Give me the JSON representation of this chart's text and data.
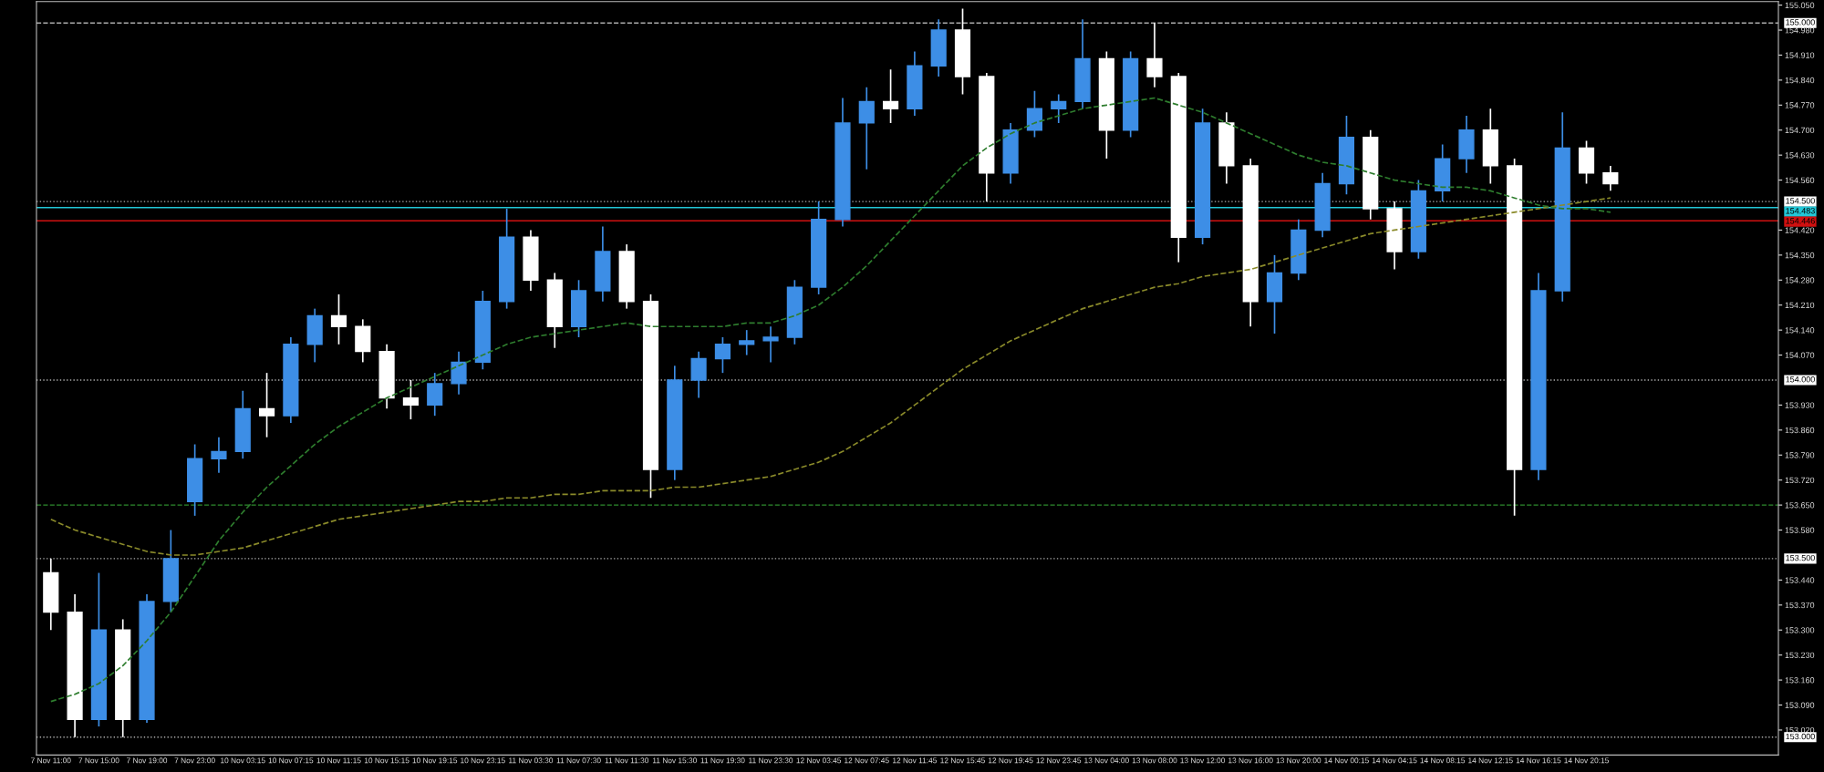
{
  "chart_data": {
    "type": "candlestick",
    "categories": [
      "7 Nov 11:00",
      null,
      "7 Nov 15:00",
      null,
      "7 Nov 19:00",
      null,
      "7 Nov 23:00",
      null,
      "10 Nov 03:15",
      null,
      "10 Nov 07:15",
      null,
      "10 Nov 11:15",
      null,
      "10 Nov 15:15",
      null,
      "10 Nov 19:15",
      null,
      "10 Nov 23:15",
      null,
      "11 Nov 03:30",
      null,
      "11 Nov 07:30",
      null,
      "11 Nov 11:30",
      null,
      "11 Nov 15:30",
      null,
      "11 Nov 19:30",
      null,
      "11 Nov 23:30",
      null,
      "12 Nov 03:45",
      null,
      "12 Nov 07:45",
      null,
      "12 Nov 11:45",
      null,
      "12 Nov 15:45",
      null,
      "12 Nov 19:45",
      null,
      "12 Nov 23:45",
      null,
      "13 Nov 04:00",
      null,
      "13 Nov 08:00",
      null,
      "13 Nov 12:00",
      null,
      "13 Nov 16:00",
      null,
      "13 Nov 20:00",
      null,
      "14 Nov 00:15",
      null,
      "14 Nov 04:15",
      null,
      "14 Nov 08:15",
      null,
      "14 Nov 12:15",
      null,
      "14 Nov 16:15",
      null,
      "14 Nov 20:15",
      null
    ],
    "ohlc": [
      [
        153.46,
        153.5,
        153.3,
        153.35
      ],
      [
        153.35,
        153.4,
        153.0,
        153.05
      ],
      [
        153.05,
        153.46,
        153.03,
        153.3
      ],
      [
        153.3,
        153.33,
        153.0,
        153.05
      ],
      [
        153.05,
        153.4,
        153.04,
        153.38
      ],
      [
        153.38,
        153.58,
        153.35,
        153.5
      ],
      [
        153.66,
        153.82,
        153.62,
        153.78
      ],
      [
        153.78,
        153.84,
        153.74,
        153.8
      ],
      [
        153.8,
        153.97,
        153.78,
        153.92
      ],
      [
        153.92,
        154.02,
        153.84,
        153.9
      ],
      [
        153.9,
        154.12,
        153.88,
        154.1
      ],
      [
        154.1,
        154.2,
        154.05,
        154.18
      ],
      [
        154.18,
        154.24,
        154.1,
        154.15
      ],
      [
        154.15,
        154.17,
        154.05,
        154.08
      ],
      [
        154.08,
        154.1,
        153.92,
        153.95
      ],
      [
        153.95,
        154.0,
        153.89,
        153.93
      ],
      [
        153.93,
        154.02,
        153.9,
        153.99
      ],
      [
        153.99,
        154.08,
        153.96,
        154.05
      ],
      [
        154.05,
        154.25,
        154.03,
        154.22
      ],
      [
        154.22,
        154.48,
        154.2,
        154.4
      ],
      [
        154.4,
        154.42,
        154.25,
        154.28
      ],
      [
        154.28,
        154.3,
        154.09,
        154.15
      ],
      [
        154.15,
        154.28,
        154.12,
        154.25
      ],
      [
        154.25,
        154.43,
        154.22,
        154.36
      ],
      [
        154.36,
        154.38,
        154.2,
        154.22
      ],
      [
        154.22,
        154.24,
        153.67,
        153.75
      ],
      [
        153.75,
        154.04,
        153.72,
        154.0
      ],
      [
        154.0,
        154.08,
        153.95,
        154.06
      ],
      [
        154.06,
        154.12,
        154.02,
        154.1
      ],
      [
        154.1,
        154.14,
        154.07,
        154.11
      ],
      [
        154.11,
        154.15,
        154.05,
        154.12
      ],
      [
        154.12,
        154.28,
        154.1,
        154.26
      ],
      [
        154.26,
        154.5,
        154.24,
        154.45
      ],
      [
        154.45,
        154.79,
        154.43,
        154.72
      ],
      [
        154.72,
        154.82,
        154.59,
        154.78
      ],
      [
        154.78,
        154.87,
        154.72,
        154.76
      ],
      [
        154.76,
        154.92,
        154.74,
        154.88
      ],
      [
        154.88,
        155.01,
        154.85,
        154.98
      ],
      [
        154.98,
        155.04,
        154.8,
        154.85
      ],
      [
        154.85,
        154.86,
        154.5,
        154.58
      ],
      [
        154.58,
        154.72,
        154.55,
        154.7
      ],
      [
        154.7,
        154.81,
        154.68,
        154.76
      ],
      [
        154.76,
        154.8,
        154.72,
        154.78
      ],
      [
        154.78,
        155.01,
        154.76,
        154.9
      ],
      [
        154.9,
        154.92,
        154.62,
        154.7
      ],
      [
        154.7,
        154.92,
        154.68,
        154.9
      ],
      [
        154.9,
        155.0,
        154.82,
        154.85
      ],
      [
        154.85,
        154.86,
        154.33,
        154.4
      ],
      [
        154.4,
        154.76,
        154.38,
        154.72
      ],
      [
        154.72,
        154.75,
        154.55,
        154.6
      ],
      [
        154.6,
        154.62,
        154.15,
        154.22
      ],
      [
        154.22,
        154.35,
        154.13,
        154.3
      ],
      [
        154.3,
        154.45,
        154.28,
        154.42
      ],
      [
        154.42,
        154.58,
        154.4,
        154.55
      ],
      [
        154.55,
        154.74,
        154.52,
        154.68
      ],
      [
        154.68,
        154.7,
        154.45,
        154.48
      ],
      [
        154.48,
        154.5,
        154.31,
        154.36
      ],
      [
        154.36,
        154.56,
        154.34,
        154.53
      ],
      [
        154.53,
        154.66,
        154.5,
        154.62
      ],
      [
        154.62,
        154.74,
        154.58,
        154.7
      ],
      [
        154.7,
        154.76,
        154.55,
        154.6
      ],
      [
        154.6,
        154.62,
        153.62,
        153.75
      ],
      [
        153.75,
        154.3,
        153.72,
        154.25
      ],
      [
        154.25,
        154.75,
        154.22,
        154.65
      ],
      [
        154.65,
        154.67,
        154.55,
        154.58
      ],
      [
        154.58,
        154.6,
        154.53,
        154.55
      ]
    ],
    "colors": [
      "#ffffff",
      "#ffffff",
      "#3d8ee6",
      "#ffffff",
      "#3d8ee6",
      "#3d8ee6",
      "#3d8ee6",
      "#3d8ee6",
      "#3d8ee6",
      "#ffffff",
      "#3d8ee6",
      "#3d8ee6",
      "#ffffff",
      "#ffffff",
      "#ffffff",
      "#ffffff",
      "#3d8ee6",
      "#3d8ee6",
      "#3d8ee6",
      "#3d8ee6",
      "#ffffff",
      "#ffffff",
      "#3d8ee6",
      "#3d8ee6",
      "#ffffff",
      "#ffffff",
      "#3d8ee6",
      "#3d8ee6",
      "#3d8ee6",
      "#3d8ee6",
      "#3d8ee6",
      "#3d8ee6",
      "#3d8ee6",
      "#3d8ee6",
      "#3d8ee6",
      "#ffffff",
      "#3d8ee6",
      "#3d8ee6",
      "#ffffff",
      "#ffffff",
      "#3d8ee6",
      "#3d8ee6",
      "#3d8ee6",
      "#3d8ee6",
      "#ffffff",
      "#3d8ee6",
      "#ffffff",
      "#ffffff",
      "#3d8ee6",
      "#ffffff",
      "#ffffff",
      "#3d8ee6",
      "#3d8ee6",
      "#3d8ee6",
      "#3d8ee6",
      "#ffffff",
      "#ffffff",
      "#3d8ee6",
      "#3d8ee6",
      "#3d8ee6",
      "#ffffff",
      "#ffffff",
      "#3d8ee6",
      "#3d8ee6",
      "#ffffff",
      "#ffffff"
    ],
    "series": [
      {
        "type": "line",
        "color": "#8a8a2a",
        "line_style": "dashed",
        "values": [
          153.61,
          153.58,
          153.56,
          153.54,
          153.52,
          153.51,
          153.51,
          153.52,
          153.53,
          153.55,
          153.57,
          153.59,
          153.61,
          153.62,
          153.63,
          153.64,
          153.65,
          153.66,
          153.66,
          153.67,
          153.67,
          153.68,
          153.68,
          153.69,
          153.69,
          153.69,
          153.7,
          153.7,
          153.71,
          153.72,
          153.73,
          153.75,
          153.77,
          153.8,
          153.84,
          153.88,
          153.93,
          153.98,
          154.03,
          154.07,
          154.11,
          154.14,
          154.17,
          154.2,
          154.22,
          154.24,
          154.26,
          154.27,
          154.29,
          154.3,
          154.31,
          154.33,
          154.35,
          154.37,
          154.39,
          154.41,
          154.42,
          154.43,
          154.44,
          154.45,
          154.46,
          154.47,
          154.48,
          154.49,
          154.5,
          154.51
        ]
      },
      {
        "type": "line",
        "color": "#2e7d2e",
        "line_style": "dashed",
        "values": [
          153.1,
          153.12,
          153.15,
          153.2,
          153.27,
          153.35,
          153.45,
          153.55,
          153.63,
          153.7,
          153.76,
          153.82,
          153.87,
          153.91,
          153.95,
          153.98,
          154.01,
          154.04,
          154.07,
          154.1,
          154.12,
          154.13,
          154.14,
          154.15,
          154.16,
          154.15,
          154.15,
          154.15,
          154.15,
          154.16,
          154.16,
          154.18,
          154.21,
          154.26,
          154.32,
          154.39,
          154.46,
          154.53,
          154.6,
          154.65,
          154.69,
          154.72,
          154.74,
          154.76,
          154.77,
          154.78,
          154.79,
          154.77,
          154.75,
          154.72,
          154.69,
          154.66,
          154.63,
          154.61,
          154.6,
          154.58,
          154.56,
          154.55,
          154.54,
          154.54,
          154.53,
          154.51,
          154.49,
          154.48,
          154.48,
          154.47
        ]
      }
    ],
    "ylim": [
      152.95,
      155.06
    ],
    "yticks": [
      {
        "value": 155.05,
        "label": "155.050"
      },
      {
        "value": 154.98,
        "label": "154.980"
      },
      {
        "value": 154.91,
        "label": "154.910"
      },
      {
        "value": 154.84,
        "label": "154.840"
      },
      {
        "value": 154.77,
        "label": "154.770"
      },
      {
        "value": 154.7,
        "label": "154.700"
      },
      {
        "value": 154.63,
        "label": "154.630"
      },
      {
        "value": 154.56,
        "label": "154.560"
      },
      {
        "value": 154.42,
        "label": "154.420"
      },
      {
        "value": 154.35,
        "label": "154.350"
      },
      {
        "value": 154.28,
        "label": "154.280"
      },
      {
        "value": 154.21,
        "label": "154.210"
      },
      {
        "value": 154.14,
        "label": "154.140"
      },
      {
        "value": 154.07,
        "label": "154.070"
      },
      {
        "value": 153.93,
        "label": "153.930"
      },
      {
        "value": 153.86,
        "label": "153.860"
      },
      {
        "value": 153.79,
        "label": "153.790"
      },
      {
        "value": 153.72,
        "label": "153.720"
      },
      {
        "value": 153.65,
        "label": "153.650"
      },
      {
        "value": 153.58,
        "label": "153.580"
      },
      {
        "value": 153.44,
        "label": "153.440"
      },
      {
        "value": 153.37,
        "label": "153.370"
      },
      {
        "value": 153.3,
        "label": "153.300"
      },
      {
        "value": 153.23,
        "label": "153.230"
      },
      {
        "value": 153.16,
        "label": "153.160"
      },
      {
        "value": 153.09,
        "label": "153.090"
      },
      {
        "value": 153.02,
        "label": "153.020"
      }
    ],
    "ref_lines": [
      {
        "axis": "y",
        "value": 155.0,
        "label": "155.000",
        "color": "#aaaaaa",
        "line_style": "dashed"
      },
      {
        "axis": "y",
        "value": 154.5,
        "label": "154.500",
        "color": "#aaaaaa",
        "line_style": "dotted"
      },
      {
        "axis": "y",
        "value": 154.483,
        "label": "154.483",
        "color": "#22c8d8",
        "line_style": "solid"
      },
      {
        "axis": "y",
        "value": 154.446,
        "label": "154.446",
        "color": "#d01010",
        "line_style": "solid"
      },
      {
        "axis": "y",
        "value": 154.0,
        "label": "154.000",
        "color": "#aaaaaa",
        "line_style": "dotted"
      },
      {
        "axis": "y",
        "value": 153.65,
        "color": "#2e8b2e",
        "line_style": "dashed"
      },
      {
        "axis": "y",
        "value": 153.5,
        "label": "153.500",
        "color": "#aaaaaa",
        "line_style": "dotted"
      },
      {
        "axis": "y",
        "value": 153.0,
        "label": "153.000",
        "color": "#aaaaaa",
        "line_style": "dotted"
      }
    ]
  }
}
